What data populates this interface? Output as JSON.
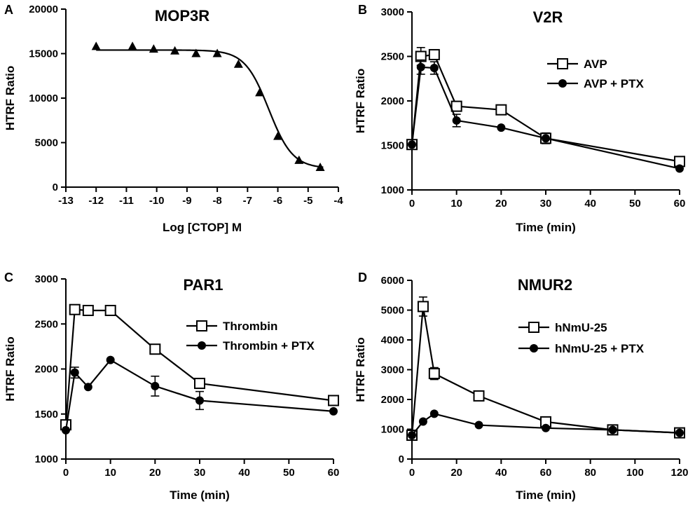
{
  "chart_data": [
    {
      "panel": "A",
      "type": "scatter",
      "title": "MOP3R",
      "xlabel": "Log [CTOP] M",
      "ylabel": "HTRF Ratio",
      "xlim": [
        -13,
        -4
      ],
      "ylim": [
        0,
        20000
      ],
      "xticks": [
        -13,
        -12,
        -11,
        -10,
        -9,
        -8,
        -7,
        -6,
        -5,
        -4
      ],
      "xtick_labels": [
        "-13",
        "-12",
        "-11",
        "-10",
        "-9",
        "-8",
        "-7",
        "-6",
        "-5",
        "-4"
      ],
      "yticks": [
        0,
        5000,
        10000,
        15000,
        20000
      ],
      "ytick_labels": [
        "0",
        "5000",
        "10000",
        "15000",
        "20000"
      ],
      "fit_curve": {
        "top": 15400,
        "bottom": 2100,
        "log_ic50": -6.3,
        "hill": 1.1
      },
      "series": [
        {
          "name": "CTOP",
          "marker": "triangle",
          "x": [
            -12,
            -10.8,
            -10.1,
            -9.4,
            -8.7,
            -8,
            -7.3,
            -6.6,
            -6,
            -5.3,
            -4.6
          ],
          "y": [
            15800,
            15800,
            15500,
            15300,
            15000,
            15000,
            13800,
            10600,
            5700,
            3000,
            2200
          ]
        }
      ]
    },
    {
      "panel": "B",
      "type": "line",
      "title": "V2R",
      "xlabel": "Time (min)",
      "ylabel": "HTRF Ratio",
      "xlim": [
        0,
        60
      ],
      "ylim": [
        1000,
        3000
      ],
      "xticks": [
        0,
        10,
        20,
        30,
        40,
        50,
        60
      ],
      "xtick_labels": [
        "0",
        "10",
        "20",
        "30",
        "40",
        "50",
        "60"
      ],
      "yticks": [
        1000,
        1500,
        2000,
        2500,
        3000
      ],
      "ytick_labels": [
        "1000",
        "1500",
        "2000",
        "2500",
        "3000"
      ],
      "legend_position": "top-right",
      "series": [
        {
          "name": "AVP",
          "marker": "open-square",
          "x": [
            0,
            2,
            5,
            10,
            20,
            30,
            60
          ],
          "y": [
            1510,
            2500,
            2520,
            1940,
            1900,
            1580,
            1320
          ],
          "err": [
            0,
            100,
            50,
            50,
            0,
            60,
            0
          ]
        },
        {
          "name": "AVP + PTX",
          "marker": "filled-circle",
          "x": [
            0,
            2,
            5,
            10,
            20,
            30,
            60
          ],
          "y": [
            1510,
            2380,
            2370,
            1780,
            1700,
            1580,
            1240
          ],
          "err": [
            0,
            80,
            70,
            70,
            0,
            0,
            0
          ]
        }
      ]
    },
    {
      "panel": "C",
      "type": "line",
      "title": "PAR1",
      "xlabel": "Time (min)",
      "ylabel": "HTRF Ratio",
      "xlim": [
        0,
        60
      ],
      "ylim": [
        1000,
        3000
      ],
      "xticks": [
        0,
        10,
        20,
        30,
        40,
        50,
        60
      ],
      "xtick_labels": [
        "0",
        "10",
        "20",
        "30",
        "40",
        "50",
        "60"
      ],
      "yticks": [
        1000,
        1500,
        2000,
        2500,
        3000
      ],
      "ytick_labels": [
        "1000",
        "1500",
        "2000",
        "2500",
        "3000"
      ],
      "legend_position": "top-right",
      "series": [
        {
          "name": "Thrombin",
          "marker": "open-square",
          "x": [
            0,
            2,
            5,
            10,
            20,
            30,
            60
          ],
          "y": [
            1380,
            2660,
            2650,
            2650,
            2220,
            1840,
            1650
          ],
          "err": [
            0,
            0,
            0,
            0,
            0,
            0,
            0
          ]
        },
        {
          "name": "Thrombin + PTX",
          "marker": "filled-circle",
          "x": [
            0,
            2,
            5,
            10,
            20,
            30,
            60
          ],
          "y": [
            1320,
            1960,
            1800,
            2100,
            1810,
            1650,
            1530
          ],
          "err": [
            0,
            60,
            0,
            0,
            110,
            100,
            0
          ]
        }
      ]
    },
    {
      "panel": "D",
      "type": "line",
      "title": "NMUR2",
      "xlabel": "Time (min)",
      "ylabel": "HTRF Ratio",
      "xlim": [
        0,
        120
      ],
      "ylim": [
        0,
        6000
      ],
      "xticks": [
        0,
        20,
        40,
        60,
        80,
        100,
        120
      ],
      "xtick_labels": [
        "0",
        "20",
        "40",
        "60",
        "80",
        "100",
        "120"
      ],
      "yticks": [
        0,
        1000,
        2000,
        3000,
        4000,
        5000,
        6000
      ],
      "ytick_labels": [
        "0",
        "1000",
        "2000",
        "3000",
        "4000",
        "5000",
        "6000"
      ],
      "legend_position": "top-right",
      "series": [
        {
          "name": "hNmU-25",
          "marker": "open-square",
          "x": [
            0,
            5,
            10,
            30,
            60,
            90,
            120
          ],
          "y": [
            800,
            5120,
            2870,
            2120,
            1250,
            980,
            880
          ],
          "err": [
            0,
            320,
            200,
            0,
            0,
            0,
            0
          ]
        },
        {
          "name": "hNmU-25 + PTX",
          "marker": "filled-circle",
          "x": [
            0,
            5,
            10,
            30,
            60,
            90,
            120
          ],
          "y": [
            800,
            1260,
            1520,
            1140,
            1040,
            980,
            880
          ],
          "err": [
            0,
            0,
            0,
            0,
            0,
            0,
            0
          ]
        }
      ]
    }
  ]
}
